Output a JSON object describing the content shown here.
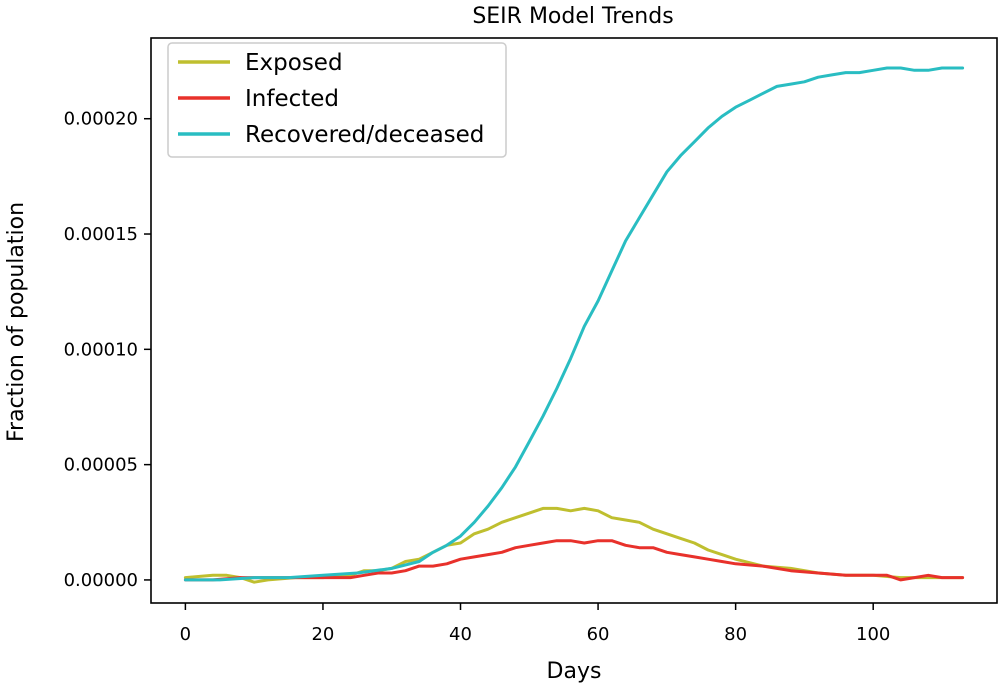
{
  "chart_data": {
    "type": "line",
    "title": "SEIR Model Trends",
    "xlabel": "Days",
    "ylabel": "Fraction of population",
    "xlim": [
      -5,
      118
    ],
    "ylim": [
      -1e-05,
      0.000235
    ],
    "xticks": [
      0,
      20,
      40,
      60,
      80,
      100
    ],
    "xtick_labels": [
      "0",
      "20",
      "40",
      "60",
      "80",
      "100"
    ],
    "yticks": [
      0.0,
      5e-05,
      0.0001,
      0.00015,
      0.0002
    ],
    "ytick_labels": [
      "0.00000",
      "0.00005",
      "0.00010",
      "0.00015",
      "0.00020"
    ],
    "grid": false,
    "legend_position": "top-left",
    "series": [
      {
        "name": "Exposed",
        "color": "#bfbf2f",
        "x": [
          0,
          4,
          6,
          8,
          10,
          12,
          16,
          20,
          24,
          26,
          28,
          30,
          32,
          34,
          36,
          38,
          40,
          42,
          44,
          46,
          48,
          50,
          52,
          54,
          56,
          58,
          60,
          62,
          64,
          66,
          68,
          70,
          72,
          74,
          76,
          78,
          80,
          84,
          88,
          92,
          96,
          100,
          104,
          108,
          113
        ],
        "y": [
          1e-06,
          2e-06,
          2e-06,
          1e-06,
          -1e-06,
          0.0,
          1e-06,
          1e-06,
          2e-06,
          4e-06,
          4e-06,
          5e-06,
          8e-06,
          9e-06,
          1.2e-05,
          1.5e-05,
          1.6e-05,
          2e-05,
          2.2e-05,
          2.5e-05,
          2.7e-05,
          2.9e-05,
          3.1e-05,
          3.1e-05,
          3e-05,
          3.1e-05,
          3e-05,
          2.7e-05,
          2.6e-05,
          2.5e-05,
          2.2e-05,
          2e-05,
          1.8e-05,
          1.6e-05,
          1.3e-05,
          1.1e-05,
          9e-06,
          6e-06,
          5e-06,
          3e-06,
          2e-06,
          2e-06,
          1e-06,
          1e-06,
          1e-06
        ]
      },
      {
        "name": "Infected",
        "color": "#e8312b",
        "x": [
          0,
          4,
          8,
          12,
          16,
          20,
          24,
          26,
          28,
          30,
          32,
          34,
          36,
          38,
          40,
          42,
          44,
          46,
          48,
          50,
          52,
          54,
          56,
          58,
          60,
          62,
          64,
          66,
          68,
          70,
          72,
          74,
          76,
          78,
          80,
          84,
          88,
          92,
          96,
          100,
          102,
          104,
          106,
          108,
          110,
          113
        ],
        "y": [
          0.0,
          0.0,
          1e-06,
          1e-06,
          1e-06,
          1e-06,
          1e-06,
          2e-06,
          3e-06,
          3e-06,
          4e-06,
          6e-06,
          6e-06,
          7e-06,
          9e-06,
          1e-05,
          1.1e-05,
          1.2e-05,
          1.4e-05,
          1.5e-05,
          1.6e-05,
          1.7e-05,
          1.7e-05,
          1.6e-05,
          1.7e-05,
          1.7e-05,
          1.5e-05,
          1.4e-05,
          1.4e-05,
          1.2e-05,
          1.1e-05,
          1e-05,
          9e-06,
          8e-06,
          7e-06,
          6e-06,
          4e-06,
          3e-06,
          2e-06,
          2e-06,
          2e-06,
          0.0,
          1e-06,
          2e-06,
          1e-06,
          1e-06
        ]
      },
      {
        "name": "Recovered/deceased",
        "color": "#29bdc2",
        "x": [
          0,
          5,
          10,
          15,
          20,
          25,
          30,
          34,
          36,
          38,
          40,
          42,
          44,
          46,
          48,
          50,
          52,
          54,
          56,
          58,
          60,
          62,
          64,
          66,
          68,
          70,
          72,
          74,
          76,
          78,
          80,
          82,
          84,
          86,
          88,
          90,
          92,
          94,
          96,
          98,
          100,
          102,
          104,
          106,
          108,
          110,
          113
        ],
        "y": [
          0.0,
          0.0,
          1e-06,
          1e-06,
          2e-06,
          3e-06,
          5e-06,
          8e-06,
          1.2e-05,
          1.5e-05,
          1.9e-05,
          2.5e-05,
          3.2e-05,
          4e-05,
          4.9e-05,
          6e-05,
          7.1e-05,
          8.3e-05,
          9.6e-05,
          0.00011,
          0.000121,
          0.000134,
          0.000147,
          0.000157,
          0.000167,
          0.000177,
          0.000184,
          0.00019,
          0.000196,
          0.000201,
          0.000205,
          0.000208,
          0.000211,
          0.000214,
          0.000215,
          0.000216,
          0.000218,
          0.000219,
          0.00022,
          0.00022,
          0.000221,
          0.000222,
          0.000222,
          0.000221,
          0.000221,
          0.000222,
          0.000222
        ]
      }
    ]
  }
}
